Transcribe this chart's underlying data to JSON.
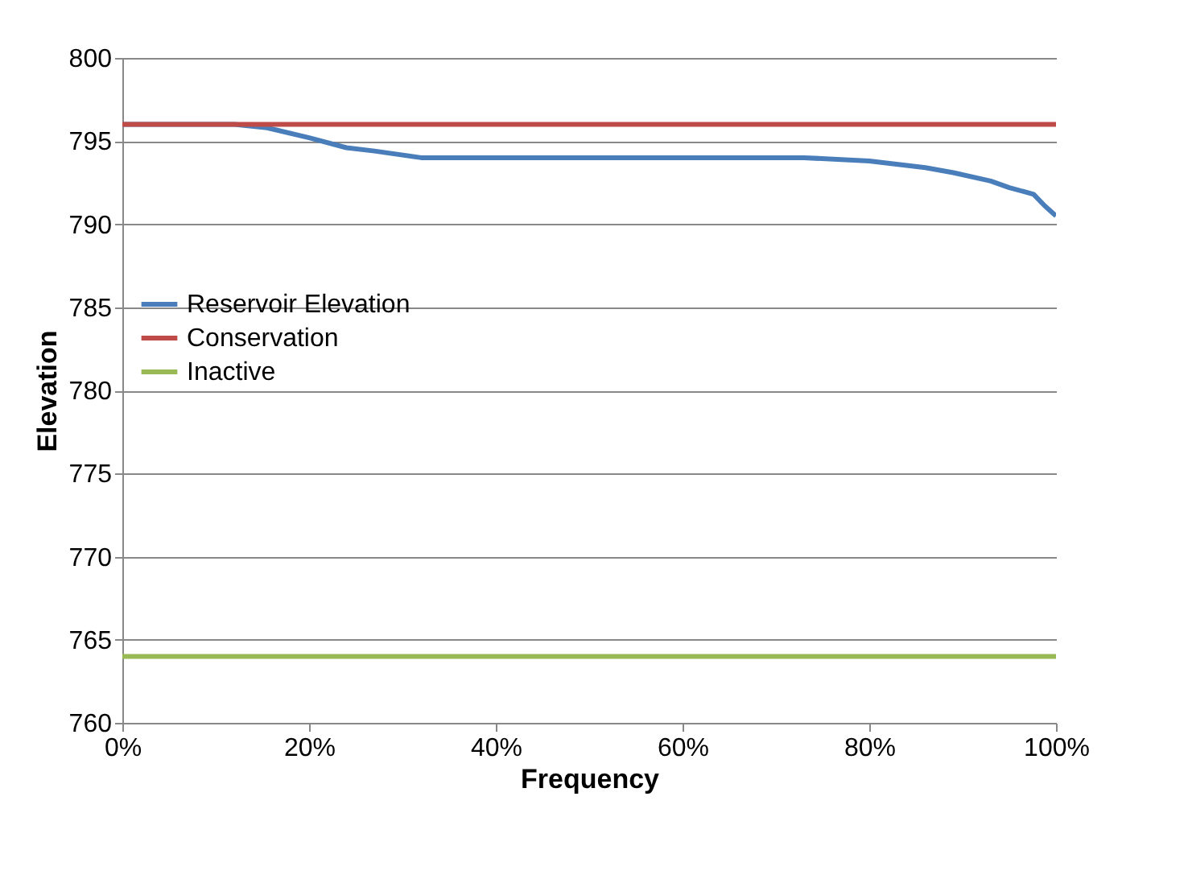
{
  "chart_data": {
    "type": "line",
    "xlabel": "Frequency",
    "ylabel": "Elevation",
    "xlim": [
      0,
      100
    ],
    "ylim": [
      760,
      800
    ],
    "xticks": [
      {
        "value": 0,
        "label": "0%"
      },
      {
        "value": 20,
        "label": "20%"
      },
      {
        "value": 40,
        "label": "40%"
      },
      {
        "value": 60,
        "label": "60%"
      },
      {
        "value": 80,
        "label": "80%"
      },
      {
        "value": 100,
        "label": "100%"
      }
    ],
    "yticks": [
      760,
      765,
      770,
      775,
      780,
      785,
      790,
      795,
      800
    ],
    "grid": "y",
    "legend": "left",
    "marker": "none",
    "line_style": "solid",
    "series": [
      {
        "name": "Reservoir Elevation",
        "color": "#4a7ebb",
        "x": [
          0,
          12,
          15.5,
          20,
          24,
          27,
          32,
          50,
          73,
          80,
          86,
          89,
          93,
          95,
          97.6,
          98.8,
          100
        ],
        "values": [
          796,
          796,
          795.8,
          795.2,
          794.6,
          794.4,
          794,
          794,
          794,
          793.8,
          793.4,
          793.1,
          792.6,
          792.2,
          791.8,
          791.1,
          790.5
        ]
      },
      {
        "name": "Conservation",
        "color": "#be4b48",
        "x": [
          0,
          100
        ],
        "values": [
          796,
          796
        ]
      },
      {
        "name": "Inactive",
        "color": "#98b954",
        "x": [
          0,
          100
        ],
        "values": [
          764,
          764
        ]
      }
    ]
  }
}
